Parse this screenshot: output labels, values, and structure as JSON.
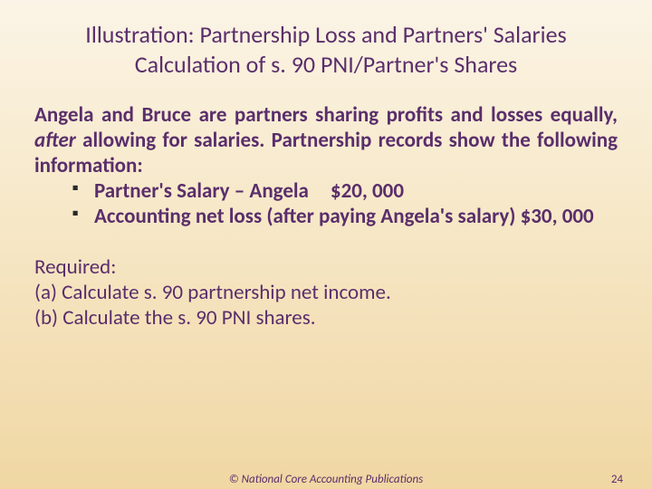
{
  "colors": {
    "text": "#5a2e6b",
    "bullet": "#2a2a2a",
    "bg_top": "#fbf4e6",
    "bg_bottom": "#f0d7a3"
  },
  "typography": {
    "title_fontsize": 26,
    "title_weight": 400,
    "body_fontsize": 23,
    "body_weight_bold": 700,
    "body_weight_normal": 400,
    "footer_fontsize": 13,
    "font_family": "Calibri"
  },
  "title": {
    "line1": "Illustration: Partnership Loss and Partners' Salaries",
    "line2": "Calculation of s. 90 PNI/Partner's Shares"
  },
  "intro": {
    "part1": "Angela and Bruce are partners sharing profits and losses equally, ",
    "italic": "after",
    "part2": " allowing for salaries.  Partnership records show the following information:"
  },
  "bullets": [
    {
      "label": "Partner's Salary – Angela",
      "amount": "$20, 000"
    },
    {
      "text": "Accounting net loss (after paying Angela's salary) $30, 000"
    }
  ],
  "required": {
    "heading": "Required:",
    "a": "(a)  Calculate s. 90 partnership net income.",
    "b": "(b)  Calculate the s. 90 PNI shares."
  },
  "footer": {
    "center": "© National Core Accounting Publications",
    "page": "24"
  }
}
